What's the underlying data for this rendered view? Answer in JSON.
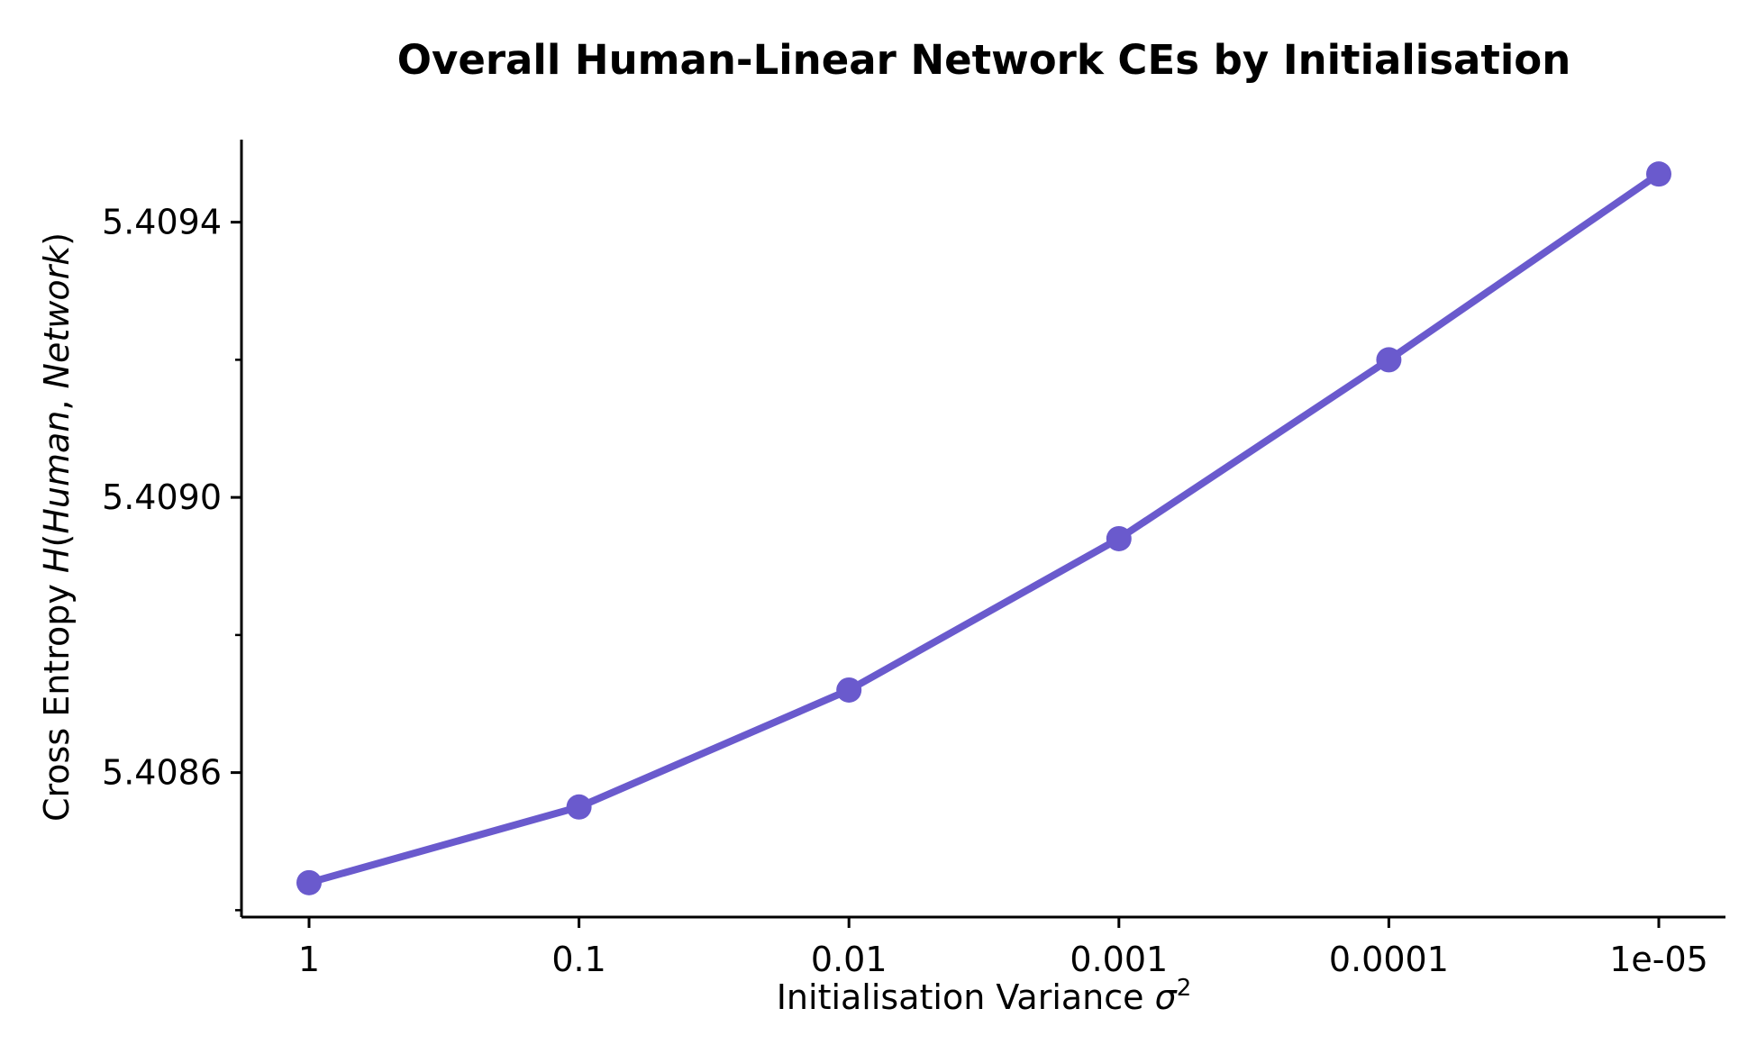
{
  "chart_data": {
    "type": "line",
    "title": "Overall Human-Linear Network CEs by Initialisation",
    "xlabel": "Initialisation Variance σ²",
    "ylabel": "Cross Entropy H(Human, Network)",
    "categories": [
      "1",
      "0.1",
      "0.01",
      "0.001",
      "0.0001",
      "1e-05"
    ],
    "series": [
      {
        "values": [
          5.40844,
          5.40855,
          5.40872,
          5.40894,
          5.4092,
          5.40947
        ],
        "color": "#6a5acd"
      }
    ],
    "ylim": [
      5.40839,
      5.40952
    ],
    "yticks": [
      5.4086,
      5.409,
      5.4094
    ],
    "ytick_labels": [
      "5.4086",
      "5.4090",
      "5.4094"
    ],
    "y_minor_ticks": [
      5.4084,
      5.4088,
      5.4092
    ],
    "grid": false,
    "legend": "none",
    "spines": "left-bottom"
  }
}
